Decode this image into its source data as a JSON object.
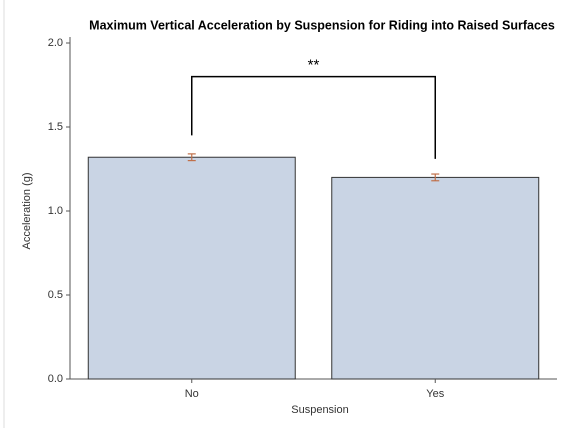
{
  "chart_data": {
    "type": "bar",
    "title": "Maximum Vertical Acceleration by Suspension for Riding into Raised Surfaces",
    "xlabel": "Suspension",
    "ylabel": "Acceleration (g)",
    "categories": [
      "No",
      "Yes"
    ],
    "values": [
      1.32,
      1.2
    ],
    "errors": [
      0.02,
      0.02
    ],
    "color": "#c9d4e4",
    "edge_color": "#333333",
    "error_color": "#c0704a",
    "ylim": [
      0,
      2.0
    ],
    "yticks": [
      {
        "value": 0,
        "label": "0.0"
      },
      {
        "value": 0.5,
        "label": "0.5"
      },
      {
        "value": 1,
        "label": "1.0"
      },
      {
        "value": 1.5,
        "label": "1.5"
      },
      {
        "value": 2,
        "label": "2.0"
      }
    ],
    "significance": {
      "label": "**",
      "y": 1.8,
      "ends": [
        1.45,
        1.31
      ]
    }
  }
}
